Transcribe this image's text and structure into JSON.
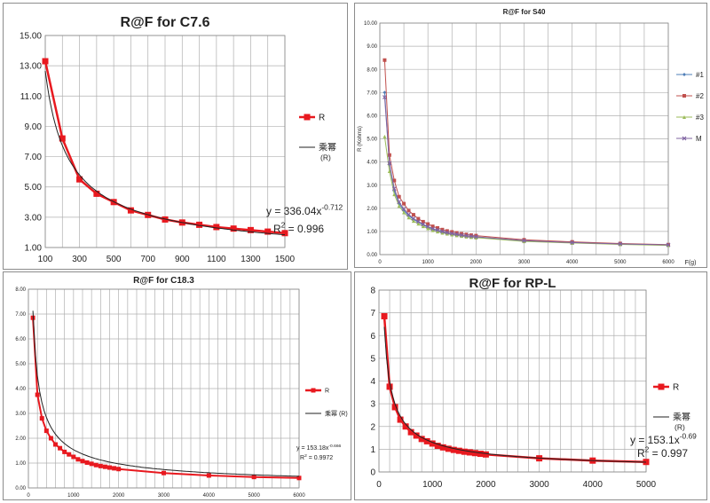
{
  "chart_data": [
    {
      "type": "line",
      "title": "R@F for C7.6",
      "xlabel": "",
      "ylabel": "",
      "xlim": [
        100,
        1500
      ],
      "ylim": [
        1,
        15
      ],
      "xticks": [
        "100",
        "300",
        "500",
        "700",
        "900",
        "1100",
        "1300",
        "1500"
      ],
      "yticks": [
        "1.00",
        "3.00",
        "5.00",
        "7.00",
        "9.00",
        "11.00",
        "13.00",
        "15.00"
      ],
      "grid": true,
      "legend_position": "right",
      "series": [
        {
          "name": "R",
          "color": "#e8191f",
          "marker": "square",
          "x": [
            100,
            200,
            300,
            400,
            500,
            600,
            700,
            800,
            900,
            1000,
            1100,
            1200,
            1300,
            1400,
            1500
          ],
          "y": [
            13.3,
            8.2,
            5.5,
            4.55,
            4.0,
            3.45,
            3.15,
            2.85,
            2.65,
            2.5,
            2.35,
            2.25,
            2.15,
            2.05,
            1.95
          ]
        },
        {
          "name": "乘幂",
          "name_sub": "(R)",
          "color": "#222222",
          "marker": "none",
          "fit": {
            "a": 336.04,
            "b": -0.712
          }
        }
      ],
      "equation": {
        "main": "y = 336.04x",
        "sup": "-0.712",
        "r2_main": "R",
        "r2_sup": "2",
        "r2_value": " = 0.996"
      }
    },
    {
      "type": "line",
      "title": "R@F for S40",
      "xlabel": "F(g)",
      "ylabel": "R (Kohms)",
      "xlim": [
        0,
        6000
      ],
      "ylim": [
        0,
        10
      ],
      "xticks": [
        "0",
        "1000",
        "2000",
        "3000",
        "4000",
        "5000",
        "6000"
      ],
      "yticks": [
        "0.00",
        "1.00",
        "2.00",
        "3.00",
        "4.00",
        "5.00",
        "6.00",
        "7.00",
        "8.00",
        "9.00",
        "10.00"
      ],
      "grid": true,
      "legend_position": "right",
      "series": [
        {
          "name": "#1",
          "color": "#4f7fb8",
          "marker": "diamond",
          "x": [
            100,
            200,
            300,
            400,
            500,
            600,
            700,
            800,
            900,
            1000,
            1100,
            1200,
            1300,
            1400,
            1500,
            1600,
            1700,
            1800,
            1900,
            2000,
            3000,
            4000,
            5000,
            6000
          ],
          "y": [
            7.0,
            3.9,
            2.75,
            2.2,
            1.9,
            1.68,
            1.52,
            1.4,
            1.28,
            1.18,
            1.1,
            1.04,
            0.98,
            0.93,
            0.89,
            0.86,
            0.83,
            0.8,
            0.78,
            0.76,
            0.6,
            0.52,
            0.46,
            0.42
          ]
        },
        {
          "name": "#2",
          "color": "#c0504d",
          "marker": "square",
          "x": [
            100,
            200,
            300,
            400,
            500,
            600,
            700,
            800,
            900,
            1000,
            1100,
            1200,
            1300,
            1400,
            1500,
            1600,
            1700,
            1800,
            1900,
            2000,
            3000,
            4000,
            5000,
            6000
          ],
          "y": [
            8.4,
            4.3,
            3.2,
            2.5,
            2.2,
            1.9,
            1.72,
            1.55,
            1.42,
            1.32,
            1.22,
            1.15,
            1.08,
            1.02,
            0.98,
            0.94,
            0.9,
            0.87,
            0.84,
            0.82,
            0.64,
            0.55,
            0.48,
            0.43
          ]
        },
        {
          "name": "#3",
          "color": "#9bbb59",
          "marker": "triangle",
          "x": [
            100,
            200,
            300,
            400,
            500,
            600,
            700,
            800,
            900,
            1000,
            1100,
            1200,
            1300,
            1400,
            1500,
            1600,
            1700,
            1800,
            1900,
            2000,
            3000,
            4000,
            5000,
            6000
          ],
          "y": [
            5.1,
            3.6,
            2.6,
            2.1,
            1.82,
            1.6,
            1.45,
            1.33,
            1.22,
            1.13,
            1.05,
            0.99,
            0.94,
            0.9,
            0.86,
            0.83,
            0.8,
            0.77,
            0.75,
            0.73,
            0.57,
            0.5,
            0.44,
            0.4
          ]
        },
        {
          "name": "M",
          "color": "#8064a2",
          "marker": "x",
          "x": [
            100,
            200,
            300,
            400,
            500,
            600,
            700,
            800,
            900,
            1000,
            1100,
            1200,
            1300,
            1400,
            1500,
            1600,
            1700,
            1800,
            1900,
            2000,
            3000,
            4000,
            5000,
            6000
          ],
          "y": [
            6.8,
            3.95,
            2.85,
            2.27,
            1.97,
            1.73,
            1.56,
            1.43,
            1.31,
            1.21,
            1.12,
            1.06,
            1.0,
            0.95,
            0.91,
            0.88,
            0.84,
            0.81,
            0.79,
            0.77,
            0.6,
            0.52,
            0.46,
            0.42
          ]
        }
      ]
    },
    {
      "type": "line",
      "title": "R@F  for C18.3",
      "xlabel": "",
      "ylabel": "",
      "xlim": [
        0,
        6000
      ],
      "ylim": [
        0,
        8
      ],
      "xticks": [
        "0",
        "1000",
        "2000",
        "3000",
        "4000",
        "5000",
        "6000"
      ],
      "yticks": [
        "0.00",
        "1.00",
        "2.00",
        "3.00",
        "4.00",
        "5.00",
        "6.00",
        "7.00",
        "8.00"
      ],
      "grid": true,
      "legend_position": "right",
      "series": [
        {
          "name": "R",
          "color": "#e8191f",
          "marker": "square",
          "x": [
            100,
            200,
            300,
            400,
            500,
            600,
            700,
            800,
            900,
            1000,
            1100,
            1200,
            1300,
            1400,
            1500,
            1600,
            1700,
            1800,
            1900,
            2000,
            3000,
            4000,
            5000,
            6000
          ],
          "y": [
            6.85,
            3.75,
            2.8,
            2.3,
            2.0,
            1.75,
            1.6,
            1.45,
            1.35,
            1.25,
            1.15,
            1.08,
            1.02,
            0.97,
            0.92,
            0.88,
            0.85,
            0.82,
            0.79,
            0.76,
            0.6,
            0.5,
            0.44,
            0.4
          ]
        },
        {
          "name": "乘幂 (R)",
          "color": "#222222",
          "marker": "none",
          "fit": {
            "a": 153.18,
            "b": -0.666
          }
        }
      ],
      "equation": {
        "main": "y = 153.18x",
        "sup": "-0.666",
        "r2_main": "R",
        "r2_sup": "2",
        "r2_value": " = 0.9972"
      }
    },
    {
      "type": "line",
      "title": "R@F  for RP-L",
      "xlabel": "",
      "ylabel": "",
      "xlim": [
        0,
        5000
      ],
      "ylim": [
        0,
        8
      ],
      "xticks": [
        "0",
        "1000",
        "2000",
        "3000",
        "4000",
        "5000"
      ],
      "yticks": [
        "0",
        "1",
        "2",
        "3",
        "4",
        "5",
        "6",
        "7",
        "8"
      ],
      "grid": true,
      "legend_position": "right",
      "series": [
        {
          "name": "R",
          "color": "#e8191f",
          "marker": "square",
          "x": [
            100,
            200,
            300,
            400,
            500,
            600,
            700,
            800,
            900,
            1000,
            1100,
            1200,
            1300,
            1400,
            1500,
            1600,
            1700,
            1800,
            1900,
            2000,
            3000,
            4000,
            5000
          ],
          "y": [
            6.85,
            3.75,
            2.85,
            2.3,
            2.0,
            1.75,
            1.6,
            1.45,
            1.35,
            1.25,
            1.15,
            1.08,
            1.02,
            0.97,
            0.93,
            0.89,
            0.86,
            0.83,
            0.8,
            0.77,
            0.6,
            0.5,
            0.44
          ]
        },
        {
          "name": "乘幂",
          "name_sub": "(R)",
          "color": "#222222",
          "marker": "none",
          "fit": {
            "a": 153.1,
            "b": -0.69
          }
        }
      ],
      "equation": {
        "main": "y = 153.1x",
        "sup": "-0.69",
        "r2_main": "R",
        "r2_sup": "2",
        "r2_value": " = 0.997"
      }
    }
  ]
}
